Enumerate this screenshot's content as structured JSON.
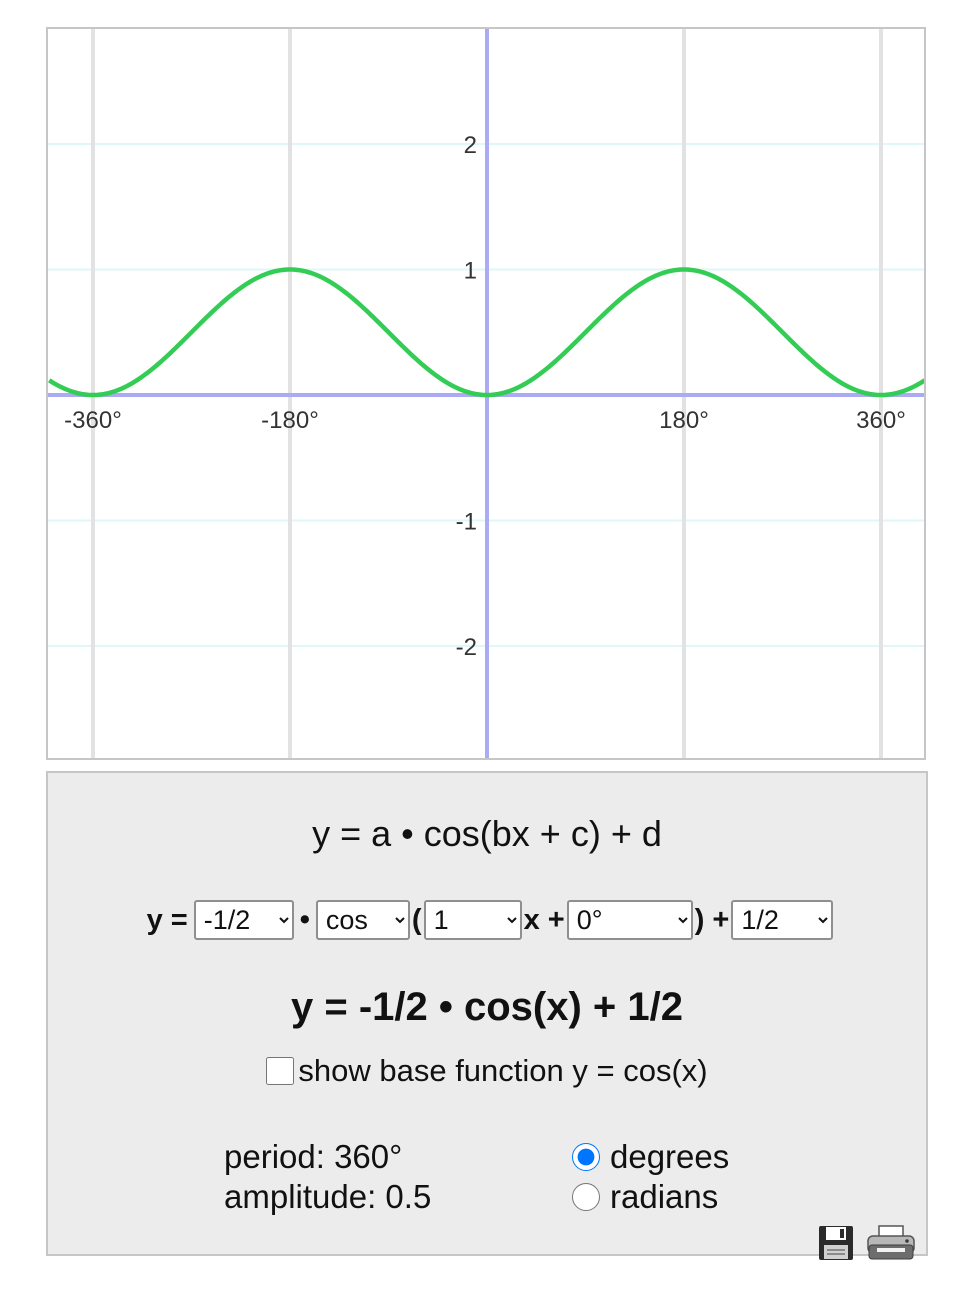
{
  "graph": {
    "x_ticks": [
      "-360°",
      "-180°",
      "180°",
      "360°"
    ],
    "y_ticks": [
      "2",
      "1",
      "-1",
      "-2"
    ],
    "colors": {
      "curve": "#33cc55",
      "axis": "#aaaaf5",
      "major_grid": "#e2e2e2",
      "minor_grid": "#dff7f7"
    }
  },
  "chart_data": {
    "type": "line",
    "function": "y = -1/2 • cos(x) + 1/2",
    "x_unit": "degrees",
    "xlim": [
      -400,
      400
    ],
    "ylim": [
      -2.9,
      2.9
    ],
    "x_ticks": [
      -360,
      -180,
      180,
      360
    ],
    "y_ticks": [
      -2,
      -1,
      1,
      2
    ],
    "series": [
      {
        "x": [
          -400,
          -360,
          -315,
          -270,
          -225,
          -180,
          -135,
          -90,
          -45,
          0,
          45,
          90,
          135,
          180,
          225,
          270,
          315,
          360,
          400
        ],
        "y": [
          0.12,
          0,
          0.15,
          0.5,
          0.85,
          1,
          0.85,
          0.5,
          0.15,
          0,
          0.15,
          0.5,
          0.85,
          1,
          0.85,
          0.5,
          0.15,
          0,
          0.12
        ]
      }
    ],
    "grid": true
  },
  "panel": {
    "title": "y = a • cos(bx + c) + d",
    "y_label": "y =",
    "dot": "•",
    "paren_open": "(",
    "x_plus": "x +",
    "paren_close_plus": ") +",
    "a_value": "-1/2",
    "fn_value": "cos",
    "b_value": "1",
    "c_value": "0°",
    "d_value": "1/2",
    "result": "y = -1/2 • cos(x) + 1/2",
    "base_checkbox_label": "show base function y = cos(x)",
    "base_checked": false,
    "period": "period: 360°",
    "amplitude": "amplitude: 0.5",
    "unit_degrees": "degrees",
    "unit_radians": "radians",
    "selected_unit": "degrees"
  },
  "icons": {
    "save": "floppy-disk-icon",
    "print": "printer-icon"
  }
}
